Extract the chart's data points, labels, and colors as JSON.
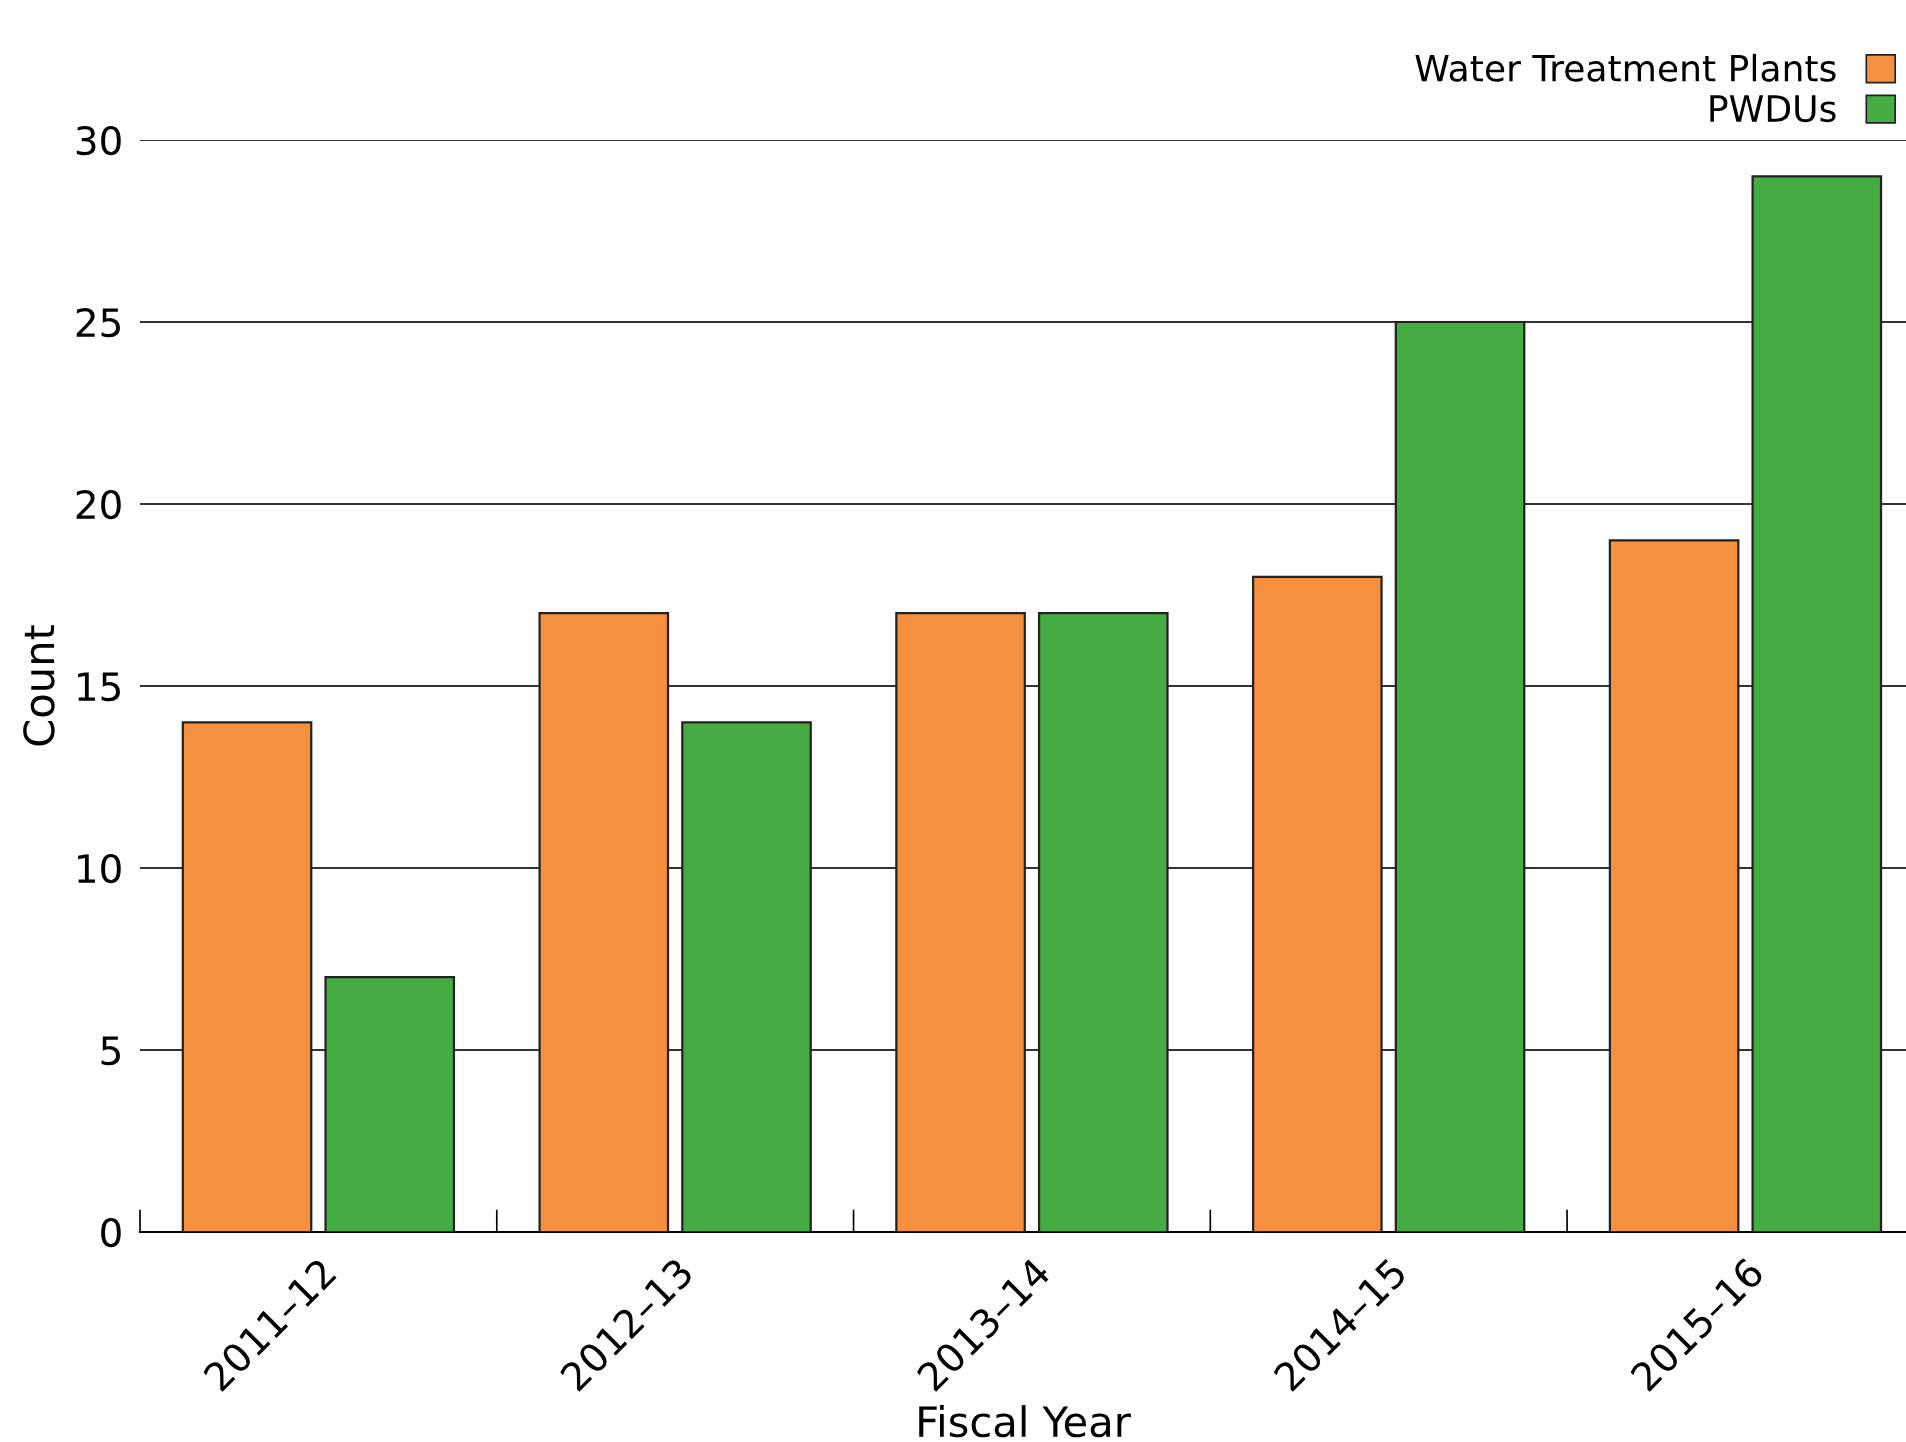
{
  "chart_data": {
    "type": "bar",
    "xlabel": "Fiscal Year",
    "ylabel": "Count",
    "categories": [
      "2011–12",
      "2012–13",
      "2013–14",
      "2014–15",
      "2015–16"
    ],
    "series": [
      {
        "name": "Water Treatment Plants",
        "color": "#f5903f",
        "values": [
          14,
          17,
          17,
          18,
          19
        ]
      },
      {
        "name": "PWDUs",
        "color": "#45ac43",
        "values": [
          7,
          14,
          17,
          25,
          29
        ]
      }
    ],
    "ylim": [
      0,
      30
    ],
    "yticks": [
      0,
      5,
      10,
      15,
      20,
      25,
      30
    ],
    "grid": "y",
    "legend": "top right"
  }
}
